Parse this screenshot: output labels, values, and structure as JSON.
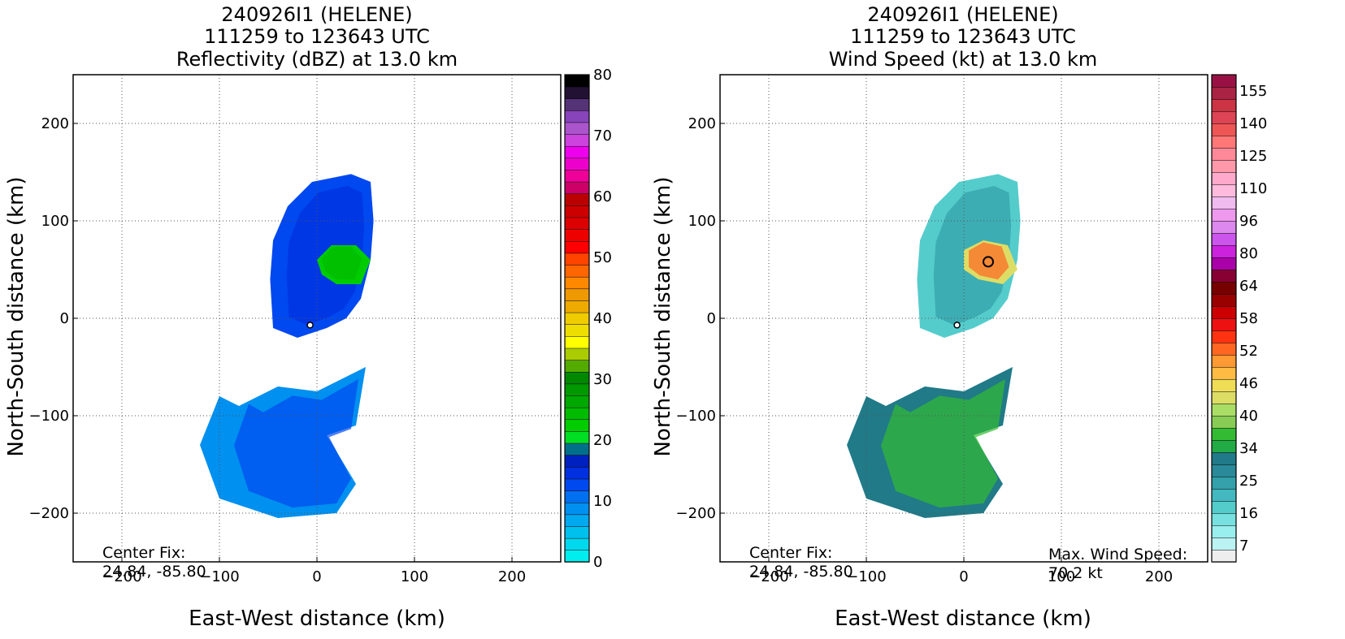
{
  "panels": [
    {
      "title_lines": [
        "240926I1 (HELENE)",
        "111259 to 123643 UTC",
        "Reflectivity (dBZ) at 13.0 km"
      ],
      "xlabel": "East-West distance (km)",
      "ylabel": "North-South distance (km)",
      "x_ticks": [
        "−200",
        "−100",
        "0",
        "100",
        "200"
      ],
      "y_ticks": [
        "200",
        "100",
        "0",
        "−100",
        "−200"
      ],
      "center_fix_label": "Center Fix:",
      "center_fix_value": "24.84, -85.80",
      "colorbar": {
        "ticks": [
          "0",
          "10",
          "20",
          "30",
          "40",
          "50",
          "60",
          "70",
          "80"
        ],
        "colors": [
          "#00eeee",
          "#00d8ee",
          "#00c0ee",
          "#00a8f0",
          "#0090f0",
          "#0070f0",
          "#0048f0",
          "#0030e0",
          "#0020c0",
          "#00708a",
          "#00dd22",
          "#00cc00",
          "#00bb00",
          "#00a800",
          "#009900",
          "#008800",
          "#55aa00",
          "#aacc00",
          "#ffff00",
          "#eedd00",
          "#eecc00",
          "#eeaa00",
          "#ee9900",
          "#ff8800",
          "#ff6600",
          "#ff4400",
          "#ff0000",
          "#ee0000",
          "#dd0000",
          "#cc0000",
          "#bb0000",
          "#cc0066",
          "#ee0099",
          "#ee00cc",
          "#ee00ee",
          "#cc44dd",
          "#aa55cc",
          "#8844bb",
          "#553377",
          "#221133",
          "#000000"
        ]
      }
    },
    {
      "title_lines": [
        "240926I1 (HELENE)",
        "111259 to 123643 UTC",
        "Wind Speed (kt) at 13.0 km"
      ],
      "xlabel": "East-West distance (km)",
      "ylabel": "North-South distance (km)",
      "x_ticks": [
        "−200",
        "−100",
        "0",
        "100",
        "200"
      ],
      "y_ticks": [
        "200",
        "100",
        "0",
        "−100",
        "−200"
      ],
      "center_fix_label": "Center Fix:",
      "center_fix_value": "24.84, -85.80",
      "max_wind_label": "Max. Wind Speed:",
      "max_wind_value": "70.2 kt",
      "colorbar": {
        "ticks": [
          "7",
          "16",
          "25",
          "34",
          "40",
          "46",
          "52",
          "58",
          "64",
          "80",
          "96",
          "110",
          "125",
          "140",
          "155"
        ],
        "colors": [
          "#eeeeee",
          "#bbf2f2",
          "#99eeee",
          "#77e0e0",
          "#55cccc",
          "#44b8c0",
          "#33a0aa",
          "#2a8a99",
          "#207a88",
          "#22aa44",
          "#33bb33",
          "#88cc55",
          "#aadd66",
          "#dddd66",
          "#eedd55",
          "#ffbb44",
          "#ff9933",
          "#ff6622",
          "#ff3311",
          "#ee1111",
          "#cc0000",
          "#990000",
          "#770000",
          "#880033",
          "#aa00aa",
          "#cc22dd",
          "#cc55ee",
          "#dd88ee",
          "#ee99ee",
          "#f0bbee",
          "#ffbbdd",
          "#ffaacc",
          "#ff99aa",
          "#ff8899",
          "#ff7777",
          "#ee5555",
          "#dd4455",
          "#cc3344",
          "#aa2244",
          "#991144"
        ]
      }
    }
  ],
  "chart_data": [
    {
      "type": "heatmap",
      "title": "240926I1 (HELENE) 111259 to 123643 UTC Reflectivity (dBZ) at 13.0 km",
      "xlabel": "East-West distance (km)",
      "ylabel": "North-South distance (km)",
      "xlim": [
        -250,
        250
      ],
      "ylim": [
        -250,
        250
      ],
      "grid": true,
      "colorbar_range": [
        0,
        80
      ],
      "colorbar_ticks": [
        0,
        10,
        20,
        30,
        40,
        50,
        60,
        70,
        80
      ],
      "center_fix": [
        24.84,
        -85.8
      ],
      "storm_center_km": [
        -7,
        -7
      ],
      "regions": [
        {
          "label": "northern echo",
          "dbz_range": [
            8,
            14
          ],
          "polygon": [
            [
              -48,
              40
            ],
            [
              -45,
              80
            ],
            [
              -30,
              115
            ],
            [
              -5,
              140
            ],
            [
              35,
              148
            ],
            [
              55,
              140
            ],
            [
              58,
              100
            ],
            [
              55,
              60
            ],
            [
              45,
              20
            ],
            [
              30,
              0
            ],
            [
              10,
              -10
            ],
            [
              -20,
              -20
            ],
            [
              -45,
              -10
            ]
          ]
        },
        {
          "label": "core",
          "dbz_range": [
            20,
            24
          ],
          "polygon": [
            [
              0,
              60
            ],
            [
              15,
              75
            ],
            [
              40,
              75
            ],
            [
              55,
              60
            ],
            [
              45,
              35
            ],
            [
              20,
              35
            ],
            [
              5,
              45
            ]
          ]
        },
        {
          "label": "southern band",
          "dbz_range": [
            2,
            12
          ],
          "polygon": [
            [
              -100,
              -80
            ],
            [
              -80,
              -90
            ],
            [
              -40,
              -70
            ],
            [
              0,
              -75
            ],
            [
              50,
              -50
            ],
            [
              40,
              -110
            ],
            [
              10,
              -120
            ],
            [
              40,
              -170
            ],
            [
              20,
              -200
            ],
            [
              -40,
              -205
            ],
            [
              -100,
              -185
            ],
            [
              -120,
              -130
            ]
          ]
        }
      ]
    },
    {
      "type": "heatmap",
      "title": "240926I1 (HELENE) 111259 to 123643 UTC Wind Speed (kt) at 13.0 km",
      "xlabel": "East-West distance (km)",
      "ylabel": "North-South distance (km)",
      "xlim": [
        -250,
        250
      ],
      "ylim": [
        -250,
        250
      ],
      "grid": true,
      "colorbar_range": [
        7,
        155
      ],
      "colorbar_ticks": [
        7,
        16,
        25,
        34,
        40,
        46,
        52,
        58,
        64,
        80,
        96,
        110,
        125,
        140,
        155
      ],
      "center_fix": [
        24.84,
        -85.8
      ],
      "max_wind_speed_kt": 70.2,
      "max_wind_location_km": [
        25,
        58
      ],
      "storm_center_km": [
        -7,
        -7
      ],
      "regions": [
        {
          "label": "northern",
          "kt_range": [
            16,
            28
          ],
          "polygon": [
            [
              -48,
              40
            ],
            [
              -45,
              80
            ],
            [
              -30,
              115
            ],
            [
              -5,
              140
            ],
            [
              35,
              148
            ],
            [
              55,
              140
            ],
            [
              58,
              100
            ],
            [
              55,
              60
            ],
            [
              45,
              20
            ],
            [
              30,
              0
            ],
            [
              10,
              -10
            ],
            [
              -20,
              -20
            ],
            [
              -45,
              -10
            ]
          ]
        },
        {
          "label": "wind max",
          "kt_range": [
            40,
            70
          ],
          "polygon": [
            [
              0,
              70
            ],
            [
              20,
              80
            ],
            [
              45,
              75
            ],
            [
              55,
              50
            ],
            [
              40,
              35
            ],
            [
              15,
              40
            ],
            [
              0,
              50
            ]
          ]
        },
        {
          "label": "southern band",
          "kt_range": [
            25,
            46
          ],
          "polygon": [
            [
              -100,
              -80
            ],
            [
              -80,
              -90
            ],
            [
              -40,
              -70
            ],
            [
              0,
              -75
            ],
            [
              50,
              -50
            ],
            [
              40,
              -110
            ],
            [
              10,
              -120
            ],
            [
              40,
              -170
            ],
            [
              20,
              -200
            ],
            [
              -40,
              -205
            ],
            [
              -100,
              -185
            ],
            [
              -120,
              -130
            ]
          ]
        }
      ]
    }
  ]
}
